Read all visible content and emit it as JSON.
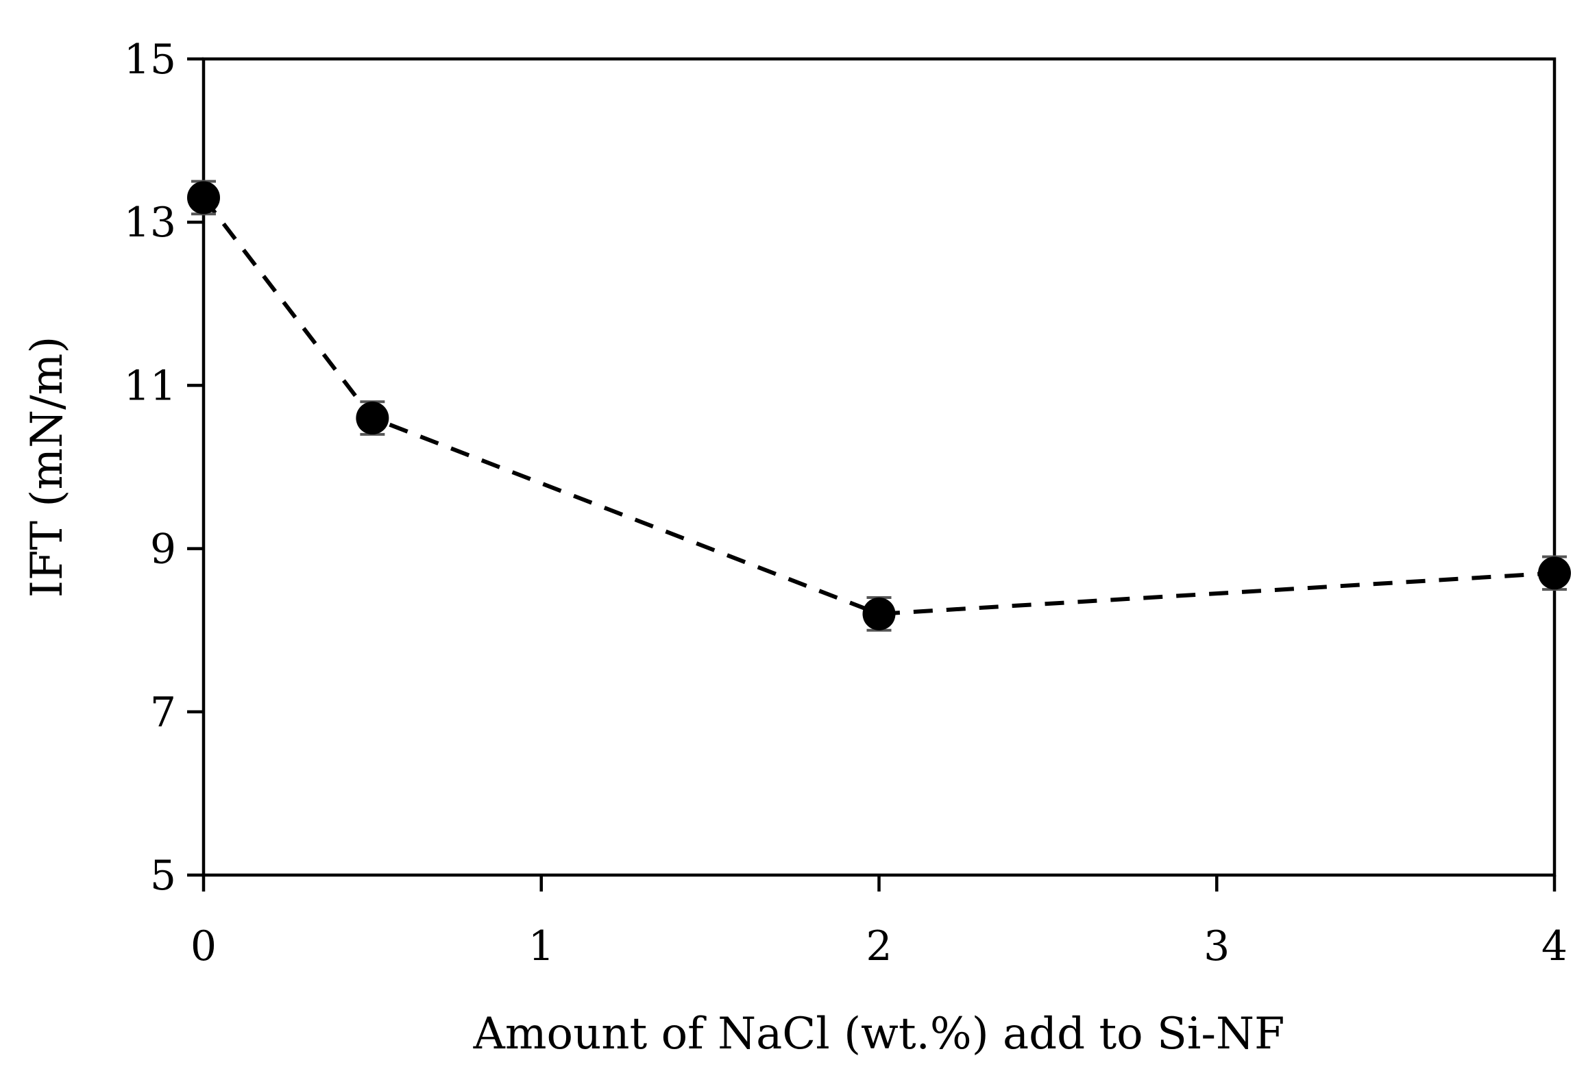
{
  "chart_data": {
    "type": "scatter",
    "title": "",
    "xlabel": "Amount of NaCl (wt.%) add to Si-NF",
    "ylabel": "IFT (mN/m)",
    "xlim": [
      0,
      4
    ],
    "ylim": [
      5,
      15
    ],
    "xticks": [
      0,
      1,
      2,
      3,
      4
    ],
    "yticks": [
      5,
      7,
      9,
      11,
      13,
      15
    ],
    "xtick_labels": [
      "0",
      "1",
      "2",
      "3",
      "4"
    ],
    "ytick_labels": [
      "5",
      "7",
      "9",
      "11",
      "13",
      "15"
    ],
    "grid": false,
    "legend": "none",
    "series": [
      {
        "name": "IFT",
        "line_style": "dashed",
        "marker": "circle",
        "color": "#000000",
        "error_color": "#555555",
        "x": [
          0,
          0.5,
          2,
          4
        ],
        "y": [
          13.3,
          10.6,
          8.2,
          8.7
        ],
        "error": [
          0.2,
          0.2,
          0.2,
          0.2
        ]
      }
    ]
  }
}
